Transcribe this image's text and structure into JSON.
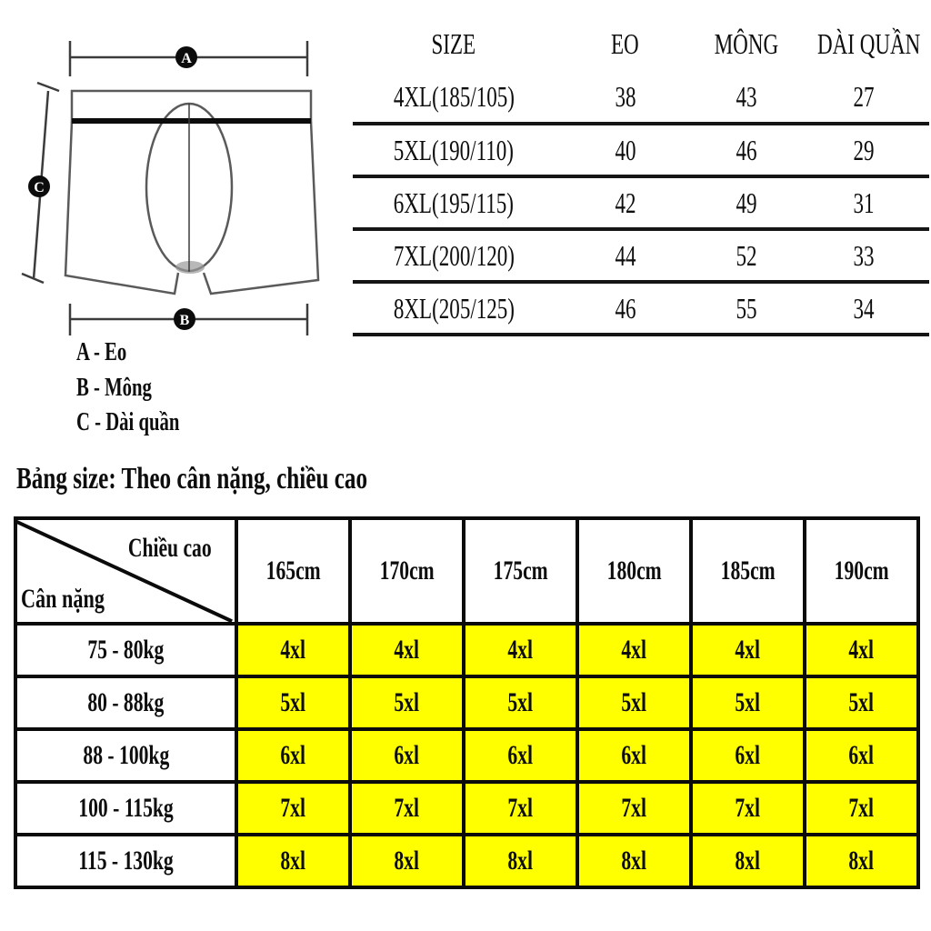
{
  "diagram": {
    "marker_a": "A",
    "marker_b": "B",
    "marker_c": "C",
    "legend": [
      "A - Eo",
      "B - Mông",
      "C - Dài quần"
    ]
  },
  "size_table": {
    "headers": [
      "SIZE",
      "EO",
      "MÔNG",
      "DÀI QUẦN"
    ],
    "rows": [
      [
        "4XL(185/105)",
        "38",
        "43",
        "27"
      ],
      [
        "5XL(190/110)",
        "40",
        "46",
        "29"
      ],
      [
        "6XL(195/115)",
        "42",
        "49",
        "31"
      ],
      [
        "7XL(200/120)",
        "44",
        "52",
        "33"
      ],
      [
        "8XL(205/125)",
        "46",
        "55",
        "34"
      ]
    ]
  },
  "weight_table": {
    "title": "Bảng size: Theo cân nặng, chiều cao",
    "corner_top": "Chiều cao",
    "corner_bottom": "Cân nặng",
    "height_headers": [
      "165cm",
      "170cm",
      "175cm",
      "180cm",
      "185cm",
      "190cm"
    ],
    "rows": [
      {
        "weight": "75 - 80kg",
        "sizes": [
          "4xl",
          "4xl",
          "4xl",
          "4xl",
          "4xl",
          "4xl"
        ]
      },
      {
        "weight": "80 - 88kg",
        "sizes": [
          "5xl",
          "5xl",
          "5xl",
          "5xl",
          "5xl",
          "5xl"
        ]
      },
      {
        "weight": "88 - 100kg",
        "sizes": [
          "6xl",
          "6xl",
          "6xl",
          "6xl",
          "6xl",
          "6xl"
        ]
      },
      {
        "weight": "100 - 115kg",
        "sizes": [
          "7xl",
          "7xl",
          "7xl",
          "7xl",
          "7xl",
          "7xl"
        ]
      },
      {
        "weight": "115 - 130kg",
        "sizes": [
          "8xl",
          "8xl",
          "8xl",
          "8xl",
          "8xl",
          "8xl"
        ]
      }
    ],
    "highlight_color": "#FFFF00"
  }
}
